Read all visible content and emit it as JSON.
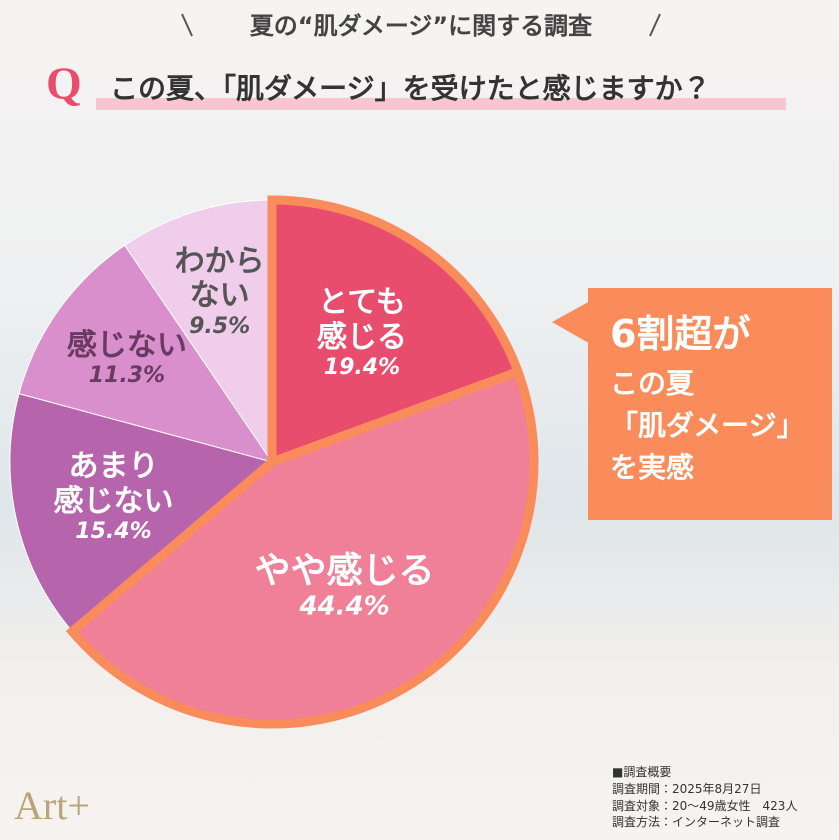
{
  "chart_data": {
    "type": "pie",
    "title": "夏の“肌ダメージ”に関する調査",
    "question_marker": "Q",
    "subtitle": "この夏、「肌ダメージ」を受けたと感じますか？",
    "categories": [
      "とても\n感じる",
      "やや感じる",
      "あまり\n感じない",
      "感じない",
      "わから\nない"
    ],
    "values": [
      19.4,
      44.4,
      15.4,
      11.3,
      9.5
    ],
    "value_labels": [
      "19.4%",
      "44.4%",
      "15.4%",
      "11.3%",
      "9.5%"
    ],
    "colors": [
      "#e84d6e",
      "#f07f98",
      "#b665ad",
      "#d98fcc",
      "#efcdeb"
    ],
    "highlight_color": "#f98c5a"
  },
  "callout": {
    "lines": [
      "6割超が",
      "この夏",
      "「肌ダメージ」",
      "を実感"
    ]
  },
  "survey": {
    "heading": "■調査概要",
    "lines": [
      "調査期間：2025年8月27日",
      "調査対象：20〜49歳女性　423人",
      "調査方法：インターネット調査"
    ]
  },
  "logo": "Art+"
}
